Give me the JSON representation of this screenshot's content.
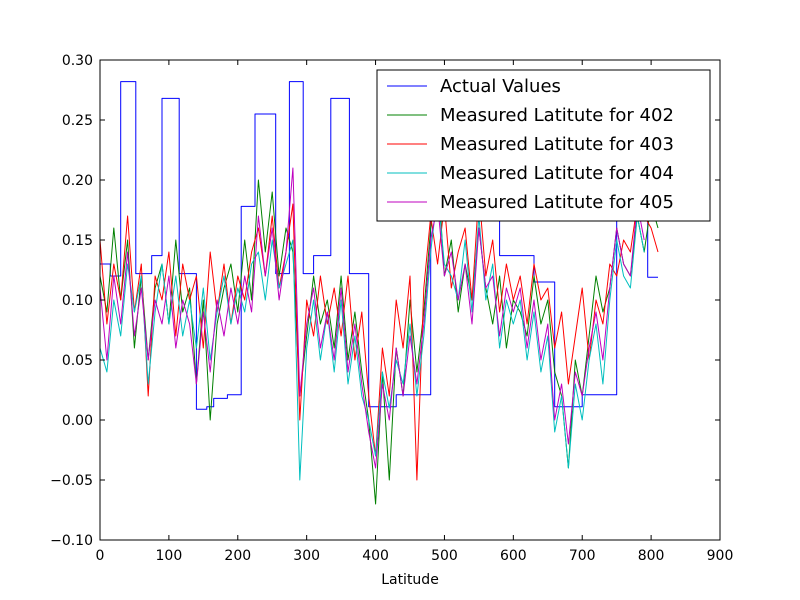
{
  "chart_data": {
    "type": "line",
    "title": "",
    "xlabel": "Latitude",
    "ylabel": "",
    "xlim": [
      0,
      900
    ],
    "ylim": [
      -0.1,
      0.3
    ],
    "xticks": [
      0,
      100,
      200,
      300,
      400,
      500,
      600,
      700,
      800,
      900
    ],
    "xtick_labels": [
      "0",
      "100",
      "200",
      "300",
      "400",
      "500",
      "600",
      "700",
      "800",
      "900"
    ],
    "yticks": [
      -0.1,
      -0.05,
      0.0,
      0.05,
      0.1,
      0.15,
      0.2,
      0.25,
      0.3
    ],
    "ytick_labels": [
      "−0.10",
      "−0.05",
      "0.00",
      "0.05",
      "0.10",
      "0.15",
      "0.20",
      "0.25",
      "0.30"
    ],
    "grid": false,
    "legend_position": "top-right",
    "series": [
      {
        "name": "Actual Values",
        "color": "#0000ff",
        "step": true,
        "x": [
          0,
          15,
          30,
          52,
          75,
          90,
          115,
          140,
          155,
          165,
          185,
          205,
          225,
          255,
          275,
          295,
          310,
          335,
          362,
          390,
          430,
          480,
          520,
          580,
          630,
          660,
          700,
          750,
          795,
          810
        ],
        "y": [
          0.13,
          0.12,
          0.282,
          0.122,
          0.137,
          0.268,
          0.122,
          0.009,
          0.011,
          0.018,
          0.021,
          0.178,
          0.255,
          0.122,
          0.282,
          0.122,
          0.137,
          0.268,
          0.122,
          0.011,
          0.021,
          0.178,
          0.282,
          0.137,
          0.115,
          0.011,
          0.021,
          0.178,
          0.119,
          0.119
        ]
      },
      {
        "name": "Measured Latitute for 402",
        "color": "#008000",
        "x": [
          0,
          10,
          20,
          30,
          40,
          50,
          60,
          70,
          80,
          90,
          100,
          110,
          120,
          130,
          140,
          150,
          160,
          170,
          180,
          190,
          200,
          210,
          220,
          230,
          240,
          250,
          260,
          270,
          280,
          290,
          300,
          310,
          320,
          330,
          340,
          350,
          360,
          370,
          380,
          390,
          400,
          410,
          420,
          430,
          440,
          450,
          460,
          470,
          480,
          490,
          500,
          510,
          520,
          530,
          540,
          550,
          560,
          570,
          580,
          590,
          600,
          610,
          620,
          630,
          640,
          650,
          660,
          670,
          680,
          690,
          700,
          710,
          720,
          730,
          740,
          750,
          760,
          770,
          780,
          790,
          800,
          810
        ],
        "y": [
          0.12,
          0.09,
          0.16,
          0.1,
          0.15,
          0.06,
          0.12,
          0.05,
          0.11,
          0.13,
          0.08,
          0.15,
          0.09,
          0.11,
          0.03,
          0.1,
          0.0,
          0.08,
          0.11,
          0.13,
          0.09,
          0.15,
          0.1,
          0.2,
          0.14,
          0.19,
          0.12,
          0.16,
          0.14,
          0.02,
          0.07,
          0.12,
          0.08,
          0.1,
          0.06,
          0.12,
          0.05,
          0.09,
          0.04,
          0.0,
          -0.07,
          0.04,
          -0.05,
          0.06,
          0.02,
          0.1,
          0.04,
          0.09,
          0.16,
          0.21,
          0.12,
          0.15,
          0.09,
          0.13,
          0.1,
          0.16,
          0.11,
          0.08,
          0.12,
          0.06,
          0.1,
          0.09,
          0.07,
          0.12,
          0.08,
          0.1,
          0.04,
          0.02,
          -0.04,
          0.05,
          0.02,
          0.07,
          0.12,
          0.09,
          0.11,
          0.16,
          0.13,
          0.12,
          0.17,
          0.14,
          0.18,
          0.16
        ]
      },
      {
        "name": "Measured Latitute for 403",
        "color": "#ff0000",
        "x": [
          0,
          10,
          20,
          30,
          40,
          50,
          60,
          70,
          80,
          90,
          100,
          110,
          120,
          130,
          140,
          150,
          160,
          170,
          180,
          190,
          200,
          210,
          220,
          230,
          240,
          250,
          260,
          270,
          280,
          290,
          300,
          310,
          320,
          330,
          340,
          350,
          360,
          370,
          380,
          390,
          400,
          410,
          420,
          430,
          440,
          450,
          460,
          470,
          480,
          490,
          500,
          510,
          520,
          530,
          540,
          550,
          560,
          570,
          580,
          590,
          600,
          610,
          620,
          630,
          640,
          650,
          660,
          670,
          680,
          690,
          700,
          710,
          720,
          730,
          740,
          750,
          760,
          770,
          780,
          790,
          800,
          810
        ],
        "y": [
          0.15,
          0.08,
          0.13,
          0.1,
          0.17,
          0.09,
          0.13,
          0.02,
          0.12,
          0.1,
          0.14,
          0.07,
          0.13,
          0.1,
          0.12,
          0.06,
          0.14,
          0.09,
          0.13,
          0.08,
          0.12,
          0.1,
          0.14,
          0.16,
          0.12,
          0.17,
          0.11,
          0.14,
          0.18,
          0.0,
          0.1,
          0.07,
          0.12,
          0.08,
          0.11,
          0.07,
          0.12,
          0.05,
          0.09,
          0.02,
          -0.03,
          0.06,
          0.02,
          0.1,
          0.06,
          0.12,
          -0.05,
          0.11,
          0.17,
          0.13,
          0.18,
          0.11,
          0.14,
          0.16,
          0.1,
          0.19,
          0.12,
          0.15,
          0.09,
          0.13,
          0.1,
          0.12,
          0.08,
          0.13,
          0.1,
          0.11,
          0.06,
          0.09,
          0.03,
          0.07,
          0.11,
          0.05,
          0.1,
          0.08,
          0.13,
          0.12,
          0.15,
          0.14,
          0.18,
          0.17,
          0.16,
          0.14
        ]
      },
      {
        "name": "Measured Latitute for 404",
        "color": "#00bfbf",
        "x": [
          0,
          10,
          20,
          30,
          40,
          50,
          60,
          70,
          80,
          90,
          100,
          110,
          120,
          130,
          140,
          150,
          160,
          170,
          180,
          190,
          200,
          210,
          220,
          230,
          240,
          250,
          260,
          270,
          280,
          290,
          300,
          310,
          320,
          330,
          340,
          350,
          360,
          370,
          380,
          390,
          400,
          410,
          420,
          430,
          440,
          450,
          460,
          470,
          480,
          490,
          500,
          510,
          520,
          530,
          540,
          550,
          560,
          570,
          580,
          590,
          600,
          610,
          620,
          630,
          640,
          650,
          660,
          670,
          680,
          690,
          700,
          710,
          720,
          730,
          740,
          750,
          760,
          770,
          780,
          790
        ],
        "y": [
          0.06,
          0.04,
          0.1,
          0.07,
          0.13,
          0.09,
          0.12,
          0.03,
          0.09,
          0.13,
          0.08,
          0.12,
          0.07,
          0.1,
          0.06,
          0.11,
          0.05,
          0.09,
          0.12,
          0.08,
          0.11,
          0.09,
          0.13,
          0.14,
          0.1,
          0.15,
          0.11,
          0.13,
          0.15,
          -0.05,
          0.06,
          0.1,
          0.05,
          0.09,
          0.04,
          0.1,
          0.03,
          0.07,
          0.02,
          0.0,
          -0.03,
          0.04,
          0.01,
          0.05,
          0.03,
          0.08,
          0.02,
          0.07,
          0.14,
          0.19,
          0.13,
          0.12,
          0.1,
          0.15,
          0.09,
          0.17,
          0.1,
          0.13,
          0.06,
          0.1,
          0.08,
          0.1,
          0.05,
          0.09,
          0.04,
          0.07,
          -0.01,
          0.02,
          -0.04,
          0.03,
          0.0,
          0.05,
          0.08,
          0.03,
          0.1,
          0.15,
          0.12,
          0.11,
          0.17,
          0.14
        ]
      },
      {
        "name": "Measured Latitute for 405",
        "color": "#bf00bf",
        "x": [
          0,
          10,
          20,
          30,
          40,
          50,
          60,
          70,
          80,
          90,
          100,
          110,
          120,
          130,
          140,
          150,
          160,
          170,
          180,
          190,
          200,
          210,
          220,
          230,
          240,
          250,
          260,
          270,
          280,
          290,
          300,
          310,
          320,
          330,
          340,
          350,
          360,
          370,
          380,
          390,
          400,
          410,
          420,
          430,
          440,
          450,
          460,
          470,
          480,
          490,
          500,
          510,
          520,
          530,
          540,
          550,
          560,
          570,
          580,
          590,
          600,
          610,
          620,
          630,
          640,
          650,
          660,
          670,
          680,
          690,
          700,
          710,
          720,
          730,
          740,
          750,
          760,
          770,
          780,
          790
        ],
        "y": [
          0.11,
          0.05,
          0.12,
          0.08,
          0.14,
          0.07,
          0.11,
          0.05,
          0.1,
          0.08,
          0.12,
          0.06,
          0.1,
          0.08,
          0.03,
          0.09,
          0.04,
          0.1,
          0.07,
          0.11,
          0.08,
          0.12,
          0.09,
          0.17,
          0.12,
          0.16,
          0.1,
          0.14,
          0.21,
          0.02,
          0.08,
          0.11,
          0.06,
          0.09,
          0.05,
          0.11,
          0.04,
          0.08,
          0.03,
          -0.01,
          -0.04,
          0.03,
          0.0,
          0.06,
          0.02,
          0.07,
          0.03,
          0.08,
          0.15,
          0.18,
          0.12,
          0.14,
          0.1,
          0.13,
          0.08,
          0.16,
          0.11,
          0.12,
          0.07,
          0.11,
          0.09,
          0.11,
          0.06,
          0.1,
          0.05,
          0.08,
          0.0,
          0.03,
          -0.02,
          0.04,
          0.02,
          0.06,
          0.09,
          0.05,
          0.11,
          0.16,
          0.13,
          0.12,
          0.18,
          0.15
        ]
      }
    ]
  }
}
